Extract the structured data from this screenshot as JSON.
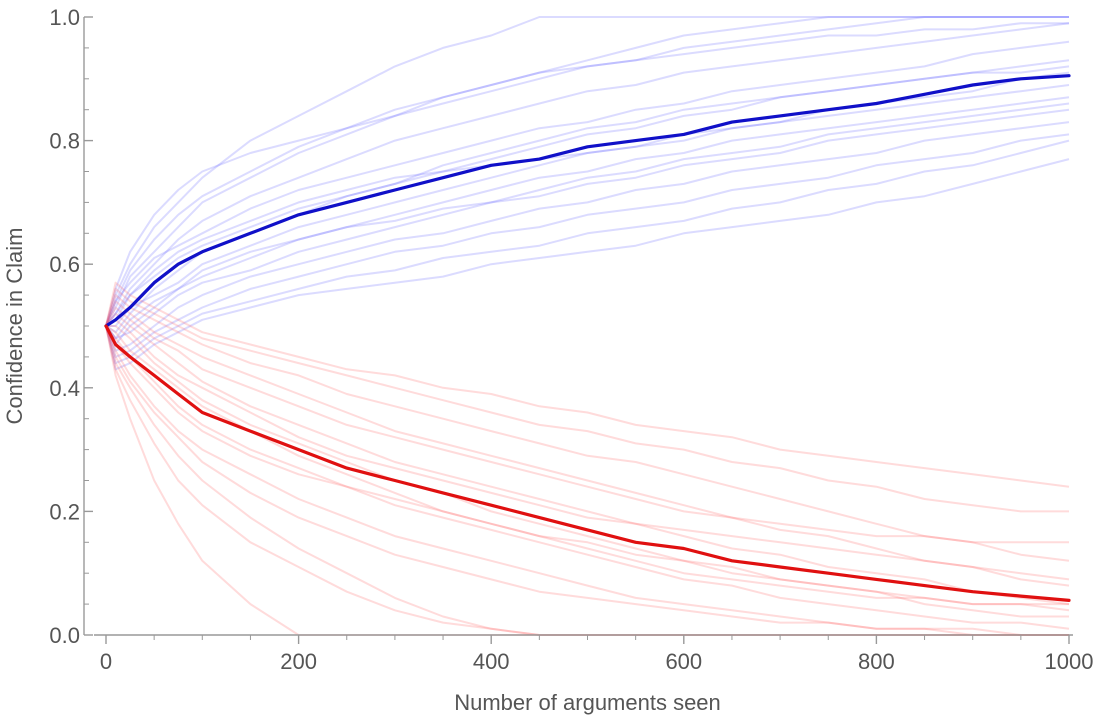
{
  "chart_data": {
    "type": "line",
    "xlabel": "Number of arguments seen",
    "ylabel": "Confidence in Claim",
    "xlim": [
      0,
      1000
    ],
    "ylim": [
      0,
      1
    ],
    "xticks": [
      0,
      200,
      400,
      600,
      800,
      1000
    ],
    "yticks": [
      0.0,
      0.2,
      0.4,
      0.6,
      0.8,
      1.0
    ],
    "xtick_labels": [
      "0",
      "200",
      "400",
      "600",
      "800",
      "1000"
    ],
    "ytick_labels": [
      "0.0",
      "0.2",
      "0.4",
      "0.6",
      "0.8",
      "1.0"
    ],
    "grid": false,
    "legend": "none",
    "colors": {
      "blue_mean": "#1010c8",
      "red_mean": "#e01010",
      "blue_run": "#5a5aff",
      "red_run": "#ff5a5a",
      "axis": "#999999",
      "text": "#555555"
    },
    "x": [
      0,
      10,
      25,
      50,
      75,
      100,
      150,
      200,
      250,
      300,
      350,
      400,
      450,
      500,
      550,
      600,
      650,
      700,
      750,
      800,
      850,
      900,
      950,
      1000
    ],
    "series": [
      {
        "group": "blue",
        "kind": "mean",
        "values": [
          0.5,
          0.51,
          0.53,
          0.57,
          0.6,
          0.62,
          0.65,
          0.68,
          0.7,
          0.72,
          0.74,
          0.76,
          0.77,
          0.79,
          0.8,
          0.81,
          0.83,
          0.84,
          0.85,
          0.86,
          0.875,
          0.89,
          0.9,
          0.905
        ]
      },
      {
        "group": "red",
        "kind": "mean",
        "values": [
          0.5,
          0.47,
          0.45,
          0.42,
          0.39,
          0.36,
          0.33,
          0.3,
          0.27,
          0.25,
          0.23,
          0.21,
          0.19,
          0.17,
          0.15,
          0.14,
          0.12,
          0.11,
          0.1,
          0.09,
          0.08,
          0.07,
          0.063,
          0.056
        ]
      },
      {
        "group": "blue",
        "kind": "run",
        "values": [
          0.5,
          0.55,
          0.6,
          0.66,
          0.7,
          0.74,
          0.8,
          0.84,
          0.88,
          0.92,
          0.95,
          0.97,
          1.0,
          1.0,
          1.0,
          1.0,
          1.0,
          1.0,
          1.0,
          1.0,
          1.0,
          1.0,
          1.0,
          1.0
        ]
      },
      {
        "group": "blue",
        "kind": "run",
        "values": [
          0.5,
          0.53,
          0.58,
          0.62,
          0.66,
          0.7,
          0.74,
          0.78,
          0.81,
          0.84,
          0.87,
          0.89,
          0.91,
          0.93,
          0.95,
          0.97,
          0.98,
          0.99,
          1.0,
          1.0,
          1.0,
          1.0,
          1.0,
          1.0
        ]
      },
      {
        "group": "blue",
        "kind": "run",
        "values": [
          0.5,
          0.52,
          0.56,
          0.6,
          0.64,
          0.67,
          0.71,
          0.74,
          0.77,
          0.8,
          0.82,
          0.84,
          0.86,
          0.88,
          0.89,
          0.91,
          0.92,
          0.93,
          0.94,
          0.95,
          0.96,
          0.97,
          0.98,
          0.99
        ]
      },
      {
        "group": "blue",
        "kind": "run",
        "values": [
          0.5,
          0.54,
          0.57,
          0.61,
          0.63,
          0.65,
          0.69,
          0.72,
          0.74,
          0.76,
          0.78,
          0.8,
          0.82,
          0.83,
          0.85,
          0.86,
          0.88,
          0.89,
          0.9,
          0.91,
          0.92,
          0.94,
          0.95,
          0.96
        ]
      },
      {
        "group": "blue",
        "kind": "run",
        "values": [
          0.5,
          0.51,
          0.55,
          0.58,
          0.61,
          0.63,
          0.66,
          0.69,
          0.71,
          0.73,
          0.75,
          0.77,
          0.79,
          0.81,
          0.82,
          0.84,
          0.85,
          0.87,
          0.88,
          0.89,
          0.9,
          0.91,
          0.92,
          0.93
        ]
      },
      {
        "group": "blue",
        "kind": "run",
        "values": [
          0.5,
          0.49,
          0.52,
          0.56,
          0.59,
          0.62,
          0.65,
          0.68,
          0.71,
          0.73,
          0.76,
          0.78,
          0.8,
          0.82,
          0.83,
          0.85,
          0.86,
          0.87,
          0.88,
          0.89,
          0.9,
          0.91,
          0.91,
          0.92
        ]
      },
      {
        "group": "blue",
        "kind": "run",
        "values": [
          0.5,
          0.5,
          0.53,
          0.55,
          0.57,
          0.6,
          0.63,
          0.66,
          0.68,
          0.7,
          0.72,
          0.74,
          0.76,
          0.78,
          0.79,
          0.81,
          0.82,
          0.83,
          0.84,
          0.85,
          0.86,
          0.87,
          0.88,
          0.89
        ]
      },
      {
        "group": "blue",
        "kind": "run",
        "values": [
          0.5,
          0.47,
          0.5,
          0.53,
          0.56,
          0.58,
          0.61,
          0.64,
          0.66,
          0.68,
          0.7,
          0.72,
          0.74,
          0.75,
          0.77,
          0.78,
          0.8,
          0.81,
          0.82,
          0.83,
          0.84,
          0.85,
          0.86,
          0.87
        ]
      },
      {
        "group": "blue",
        "kind": "run",
        "values": [
          0.5,
          0.48,
          0.49,
          0.52,
          0.55,
          0.57,
          0.59,
          0.62,
          0.64,
          0.66,
          0.68,
          0.7,
          0.71,
          0.73,
          0.74,
          0.76,
          0.77,
          0.78,
          0.8,
          0.81,
          0.82,
          0.83,
          0.84,
          0.85
        ]
      },
      {
        "group": "blue",
        "kind": "run",
        "values": [
          0.5,
          0.46,
          0.47,
          0.5,
          0.53,
          0.55,
          0.58,
          0.6,
          0.62,
          0.64,
          0.65,
          0.67,
          0.69,
          0.7,
          0.72,
          0.73,
          0.75,
          0.76,
          0.77,
          0.78,
          0.8,
          0.81,
          0.82,
          0.83
        ]
      },
      {
        "group": "blue",
        "kind": "run",
        "values": [
          0.5,
          0.45,
          0.46,
          0.49,
          0.51,
          0.53,
          0.56,
          0.58,
          0.6,
          0.62,
          0.63,
          0.65,
          0.66,
          0.68,
          0.69,
          0.7,
          0.72,
          0.73,
          0.74,
          0.76,
          0.77,
          0.78,
          0.8,
          0.81
        ]
      },
      {
        "group": "blue",
        "kind": "run",
        "values": [
          0.5,
          0.44,
          0.45,
          0.48,
          0.5,
          0.52,
          0.54,
          0.56,
          0.58,
          0.59,
          0.61,
          0.62,
          0.63,
          0.65,
          0.66,
          0.67,
          0.69,
          0.7,
          0.72,
          0.73,
          0.75,
          0.76,
          0.78,
          0.8
        ]
      },
      {
        "group": "blue",
        "kind": "run",
        "values": [
          0.5,
          0.43,
          0.44,
          0.47,
          0.49,
          0.51,
          0.53,
          0.55,
          0.56,
          0.57,
          0.58,
          0.6,
          0.61,
          0.62,
          0.63,
          0.65,
          0.66,
          0.67,
          0.68,
          0.7,
          0.71,
          0.73,
          0.75,
          0.77
        ]
      },
      {
        "group": "blue",
        "kind": "run",
        "values": [
          0.5,
          0.56,
          0.62,
          0.68,
          0.72,
          0.75,
          0.78,
          0.8,
          0.82,
          0.84,
          0.86,
          0.88,
          0.9,
          0.92,
          0.93,
          0.95,
          0.96,
          0.97,
          0.98,
          0.99,
          1.0,
          1.0,
          1.0,
          1.0
        ]
      },
      {
        "group": "blue",
        "kind": "run",
        "values": [
          0.5,
          0.52,
          0.55,
          0.59,
          0.62,
          0.64,
          0.67,
          0.7,
          0.72,
          0.74,
          0.75,
          0.76,
          0.77,
          0.78,
          0.79,
          0.8,
          0.82,
          0.83,
          0.85,
          0.86,
          0.87,
          0.88,
          0.9,
          0.91
        ]
      },
      {
        "group": "blue",
        "kind": "run",
        "values": [
          0.5,
          0.48,
          0.51,
          0.54,
          0.56,
          0.59,
          0.62,
          0.64,
          0.66,
          0.67,
          0.69,
          0.7,
          0.72,
          0.74,
          0.75,
          0.77,
          0.78,
          0.79,
          0.81,
          0.82,
          0.83,
          0.84,
          0.85,
          0.86
        ]
      },
      {
        "group": "blue",
        "kind": "run",
        "values": [
          0.5,
          0.54,
          0.59,
          0.64,
          0.68,
          0.71,
          0.75,
          0.79,
          0.82,
          0.85,
          0.87,
          0.89,
          0.91,
          0.92,
          0.93,
          0.94,
          0.95,
          0.96,
          0.97,
          0.97,
          0.98,
          0.98,
          0.99,
          0.99
        ]
      },
      {
        "group": "red",
        "kind": "run",
        "values": [
          0.5,
          0.42,
          0.35,
          0.25,
          0.18,
          0.12,
          0.05,
          0.0,
          0.0,
          0.0,
          0.0,
          0.0,
          0.0,
          0.0,
          0.0,
          0.0,
          0.0,
          0.0,
          0.0,
          0.0,
          0.0,
          0.0,
          0.0,
          0.0
        ]
      },
      {
        "group": "red",
        "kind": "run",
        "values": [
          0.5,
          0.44,
          0.4,
          0.34,
          0.29,
          0.25,
          0.19,
          0.14,
          0.1,
          0.06,
          0.03,
          0.01,
          0.0,
          0.0,
          0.0,
          0.0,
          0.0,
          0.0,
          0.0,
          0.0,
          0.0,
          0.0,
          0.0,
          0.0
        ]
      },
      {
        "group": "red",
        "kind": "run",
        "values": [
          0.5,
          0.46,
          0.42,
          0.37,
          0.33,
          0.3,
          0.26,
          0.22,
          0.19,
          0.16,
          0.14,
          0.12,
          0.1,
          0.08,
          0.06,
          0.05,
          0.04,
          0.03,
          0.02,
          0.01,
          0.01,
          0.0,
          0.0,
          0.0
        ]
      },
      {
        "group": "red",
        "kind": "run",
        "values": [
          0.5,
          0.48,
          0.45,
          0.41,
          0.37,
          0.34,
          0.3,
          0.27,
          0.24,
          0.21,
          0.19,
          0.17,
          0.15,
          0.13,
          0.11,
          0.09,
          0.08,
          0.06,
          0.05,
          0.04,
          0.03,
          0.02,
          0.02,
          0.01
        ]
      },
      {
        "group": "red",
        "kind": "run",
        "values": [
          0.5,
          0.5,
          0.48,
          0.44,
          0.41,
          0.38,
          0.34,
          0.31,
          0.28,
          0.25,
          0.23,
          0.2,
          0.18,
          0.16,
          0.14,
          0.12,
          0.11,
          0.09,
          0.08,
          0.07,
          0.05,
          0.04,
          0.03,
          0.03
        ]
      },
      {
        "group": "red",
        "kind": "run",
        "values": [
          0.5,
          0.52,
          0.5,
          0.47,
          0.44,
          0.41,
          0.37,
          0.34,
          0.31,
          0.28,
          0.26,
          0.24,
          0.22,
          0.2,
          0.18,
          0.16,
          0.14,
          0.13,
          0.11,
          0.1,
          0.09,
          0.07,
          0.06,
          0.05
        ]
      },
      {
        "group": "red",
        "kind": "run",
        "values": [
          0.5,
          0.54,
          0.52,
          0.49,
          0.47,
          0.45,
          0.42,
          0.39,
          0.36,
          0.33,
          0.31,
          0.29,
          0.27,
          0.25,
          0.23,
          0.21,
          0.19,
          0.17,
          0.16,
          0.14,
          0.12,
          0.11,
          0.09,
          0.08
        ]
      },
      {
        "group": "red",
        "kind": "run",
        "values": [
          0.5,
          0.55,
          0.53,
          0.51,
          0.49,
          0.47,
          0.44,
          0.42,
          0.39,
          0.37,
          0.35,
          0.33,
          0.31,
          0.29,
          0.28,
          0.26,
          0.24,
          0.22,
          0.2,
          0.18,
          0.16,
          0.15,
          0.13,
          0.12
        ]
      },
      {
        "group": "red",
        "kind": "run",
        "values": [
          0.5,
          0.56,
          0.54,
          0.52,
          0.5,
          0.48,
          0.46,
          0.44,
          0.42,
          0.4,
          0.38,
          0.36,
          0.34,
          0.33,
          0.31,
          0.3,
          0.28,
          0.27,
          0.25,
          0.24,
          0.22,
          0.21,
          0.2,
          0.2
        ]
      },
      {
        "group": "red",
        "kind": "run",
        "values": [
          0.5,
          0.57,
          0.55,
          0.53,
          0.51,
          0.49,
          0.47,
          0.45,
          0.43,
          0.42,
          0.4,
          0.39,
          0.37,
          0.36,
          0.34,
          0.33,
          0.32,
          0.3,
          0.29,
          0.28,
          0.27,
          0.26,
          0.25,
          0.24
        ]
      },
      {
        "group": "red",
        "kind": "run",
        "values": [
          0.5,
          0.47,
          0.44,
          0.4,
          0.36,
          0.33,
          0.29,
          0.26,
          0.24,
          0.22,
          0.2,
          0.18,
          0.16,
          0.15,
          0.13,
          0.12,
          0.1,
          0.09,
          0.08,
          0.07,
          0.06,
          0.05,
          0.05,
          0.04
        ]
      },
      {
        "group": "red",
        "kind": "run",
        "values": [
          0.5,
          0.51,
          0.49,
          0.45,
          0.42,
          0.4,
          0.36,
          0.32,
          0.29,
          0.27,
          0.25,
          0.23,
          0.21,
          0.19,
          0.18,
          0.17,
          0.16,
          0.15,
          0.14,
          0.13,
          0.12,
          0.11,
          0.1,
          0.09
        ]
      },
      {
        "group": "red",
        "kind": "run",
        "values": [
          0.5,
          0.45,
          0.41,
          0.36,
          0.32,
          0.28,
          0.23,
          0.19,
          0.16,
          0.13,
          0.11,
          0.09,
          0.07,
          0.06,
          0.05,
          0.04,
          0.03,
          0.02,
          0.02,
          0.01,
          0.01,
          0.01,
          0.0,
          0.0
        ]
      },
      {
        "group": "red",
        "kind": "run",
        "values": [
          0.5,
          0.53,
          0.51,
          0.48,
          0.46,
          0.43,
          0.4,
          0.37,
          0.34,
          0.32,
          0.3,
          0.28,
          0.26,
          0.24,
          0.22,
          0.2,
          0.19,
          0.18,
          0.17,
          0.16,
          0.16,
          0.15,
          0.15,
          0.15
        ]
      },
      {
        "group": "red",
        "kind": "run",
        "values": [
          0.5,
          0.49,
          0.46,
          0.43,
          0.4,
          0.37,
          0.33,
          0.29,
          0.26,
          0.23,
          0.2,
          0.18,
          0.16,
          0.14,
          0.12,
          0.1,
          0.09,
          0.08,
          0.07,
          0.06,
          0.06,
          0.05,
          0.05,
          0.05
        ]
      },
      {
        "group": "red",
        "kind": "run",
        "values": [
          0.5,
          0.43,
          0.38,
          0.31,
          0.25,
          0.21,
          0.15,
          0.11,
          0.07,
          0.04,
          0.02,
          0.01,
          0.0,
          0.0,
          0.0,
          0.0,
          0.0,
          0.0,
          0.0,
          0.0,
          0.0,
          0.0,
          0.0,
          0.0
        ]
      }
    ]
  }
}
